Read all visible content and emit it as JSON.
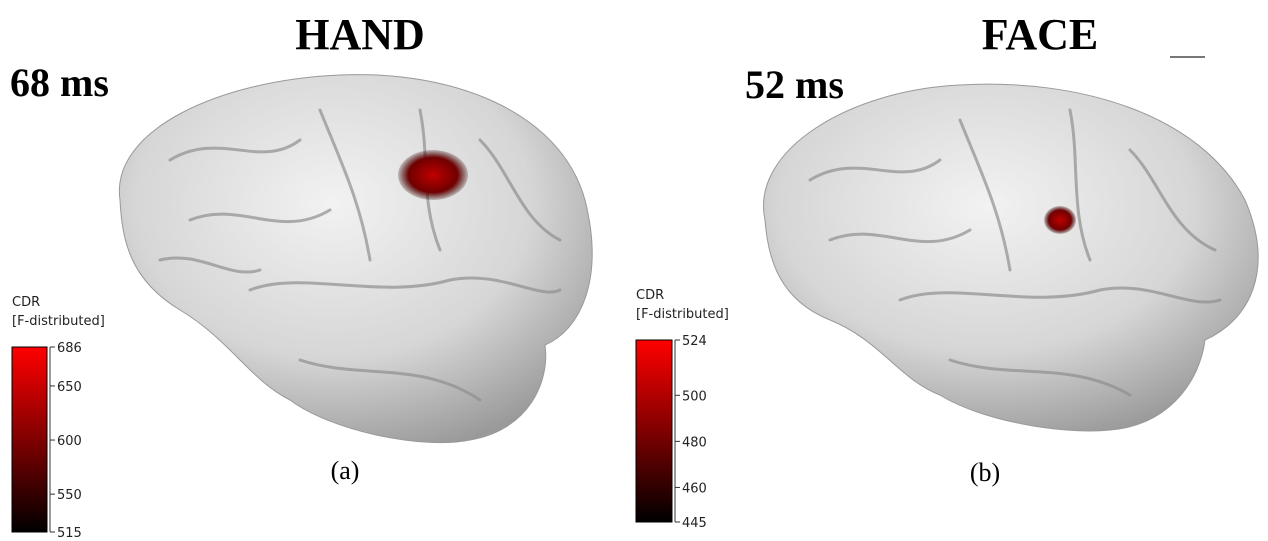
{
  "panels": [
    {
      "title": "HAND",
      "time": "68 ms",
      "caption": "(a)",
      "colorbar": {
        "label": "CDR",
        "sublabel": "[F-distributed]",
        "limits": [
          515,
          686
        ],
        "ticks": [
          686,
          650,
          600,
          550,
          515
        ]
      }
    },
    {
      "title": "FACE",
      "time": "52 ms",
      "caption": "(b)",
      "colorbar": {
        "label": "CDR",
        "sublabel": "[F-distributed]",
        "limits": [
          445,
          524
        ],
        "ticks": [
          524,
          500,
          480,
          460,
          445
        ]
      }
    }
  ]
}
